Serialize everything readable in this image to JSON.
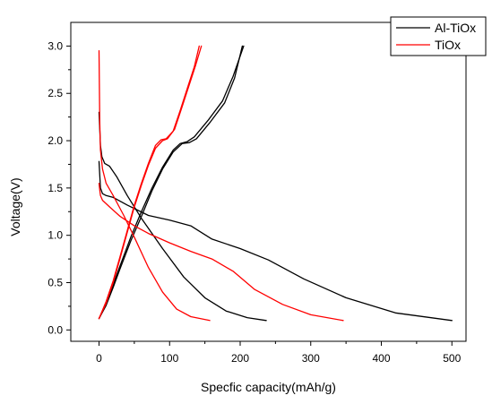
{
  "chart_data": {
    "type": "line",
    "title": "",
    "xlabel": "Specfic capacity(mAh/g)",
    "ylabel": "Voltage(V)",
    "xlim": [
      -40,
      520
    ],
    "ylim": [
      -0.12,
      3.25
    ],
    "xticks": [
      0,
      100,
      200,
      300,
      400,
      500
    ],
    "xtick_labels": [
      "0",
      "100",
      "200",
      "300",
      "400",
      "500"
    ],
    "yticks": [
      0.0,
      0.5,
      1.0,
      1.5,
      2.0,
      2.5,
      3.0
    ],
    "ytick_labels": [
      "0.0",
      "0.5",
      "1.0",
      "1.5",
      "2.0",
      "2.5",
      "3.0"
    ],
    "grid": false,
    "legend_position": "top-right",
    "series": [
      {
        "name": "Al-TiOx",
        "color": "#000000",
        "curves": [
          {
            "x": [
              0,
              2,
              5,
              10,
              20,
              40,
              70,
              100,
              130,
              160,
              200,
              240,
              290,
              350,
              420,
              500
            ],
            "y": [
              1.78,
              1.5,
              1.44,
              1.42,
              1.4,
              1.32,
              1.21,
              1.16,
              1.1,
              0.96,
              0.86,
              0.74,
              0.54,
              0.34,
              0.18,
              0.1
            ]
          },
          {
            "x": [
              0,
              2,
              4,
              8,
              15,
              25,
              40,
              60,
              90,
              120,
              150,
              180,
              210,
              237
            ],
            "y": [
              2.3,
              1.95,
              1.83,
              1.76,
              1.73,
              1.62,
              1.42,
              1.18,
              0.86,
              0.56,
              0.34,
              0.2,
              0.13,
              0.1
            ]
          },
          {
            "x": [
              0,
              10,
              20,
              30,
              45,
              60,
              75,
              90,
              105,
              115,
              125,
              135,
              155,
              175,
              190,
              205
            ],
            "y": [
              0.12,
              0.28,
              0.48,
              0.68,
              0.98,
              1.25,
              1.5,
              1.72,
              1.9,
              1.97,
              1.99,
              2.04,
              2.22,
              2.42,
              2.68,
              3.0
            ]
          },
          {
            "x": [
              0,
              10,
              20,
              30,
              45,
              60,
              75,
              90,
              105,
              118,
              128,
              138,
              158,
              178,
              192,
              203
            ],
            "y": [
              0.12,
              0.26,
              0.45,
              0.65,
              0.94,
              1.2,
              1.47,
              1.7,
              1.88,
              1.97,
              1.98,
              2.02,
              2.2,
              2.4,
              2.66,
              3.0
            ]
          }
        ]
      },
      {
        "name": "TiOx",
        "color": "#ff0000",
        "curves": [
          {
            "x": [
              0,
              1,
              2,
              5,
              15,
              30,
              50,
              70,
              100,
              130,
              160,
              190,
              220,
              260,
              300,
              346
            ],
            "y": [
              1.55,
              1.48,
              1.42,
              1.37,
              1.3,
              1.2,
              1.1,
              1.02,
              0.92,
              0.83,
              0.75,
              0.62,
              0.43,
              0.27,
              0.16,
              0.1
            ]
          },
          {
            "x": [
              0,
              1,
              2,
              5,
              10,
              20,
              35,
              50,
              70,
              90,
              110,
              130,
              157
            ],
            "y": [
              2.95,
              2.2,
              1.9,
              1.7,
              1.55,
              1.42,
              1.21,
              0.98,
              0.66,
              0.4,
              0.22,
              0.14,
              0.1
            ]
          },
          {
            "x": [
              0,
              10,
              20,
              30,
              40,
              50,
              60,
              70,
              80,
              88,
              95,
              105,
              115,
              125,
              135,
              142
            ],
            "y": [
              0.12,
              0.3,
              0.52,
              0.78,
              1.05,
              1.32,
              1.55,
              1.76,
              1.95,
              2.01,
              2.02,
              2.1,
              2.32,
              2.55,
              2.78,
              3.0
            ]
          },
          {
            "x": [
              0,
              10,
              20,
              30,
              40,
              50,
              60,
              70,
              80,
              90,
              97,
              107,
              117,
              127,
              137,
              145
            ],
            "y": [
              0.12,
              0.28,
              0.5,
              0.76,
              1.03,
              1.3,
              1.53,
              1.74,
              1.92,
              2.0,
              2.02,
              2.12,
              2.34,
              2.57,
              2.8,
              3.0
            ]
          }
        ]
      }
    ]
  }
}
